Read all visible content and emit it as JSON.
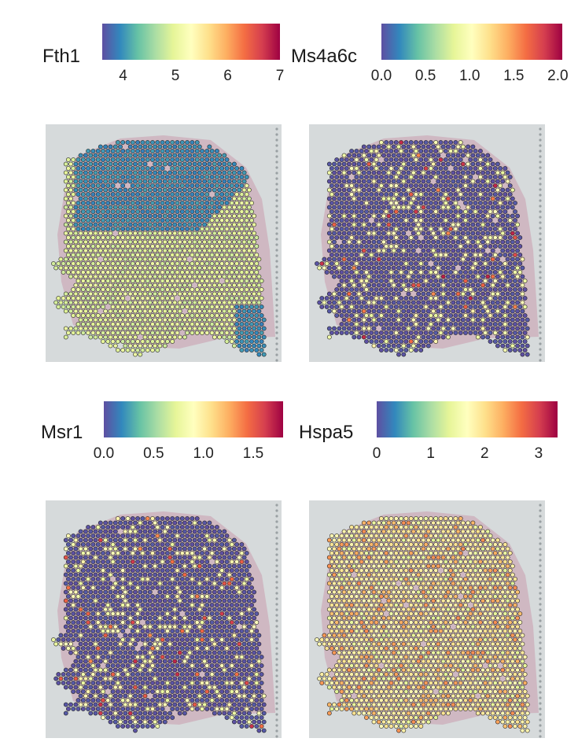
{
  "figure": {
    "colormap": [
      "#5e4fa2",
      "#3288bd",
      "#66c2a5",
      "#abdda4",
      "#e6f598",
      "#ffffbf",
      "#fee08b",
      "#fdae61",
      "#f46d43",
      "#d53e4f",
      "#9e0142"
    ],
    "background_color": "#d6dadb",
    "spot_edge_color": "#222222"
  },
  "chart_data": [
    {
      "type": "scatter",
      "title": "Fth1",
      "legend_title": "Fth1",
      "color_range": [
        3.6,
        7.0
      ],
      "ticks": [
        "4",
        "5",
        "6",
        "7"
      ],
      "tick_values": [
        4,
        5,
        6,
        7
      ],
      "spot_value_mode": "high",
      "baseline_value": 4.9,
      "hotspot_value": 3.9
    },
    {
      "type": "scatter",
      "title": "Ms4a6c",
      "legend_title": "Ms4a6c",
      "color_range": [
        0.0,
        2.05
      ],
      "ticks": [
        "0.0",
        "0.5",
        "1.0",
        "1.5",
        "2.0"
      ],
      "tick_values": [
        0.0,
        0.5,
        1.0,
        1.5,
        2.0
      ],
      "spot_value_mode": "sparse",
      "baseline_value": 0.0,
      "hotspot_value": 1.0
    },
    {
      "type": "scatter",
      "title": "Msr1",
      "legend_title": "Msr1",
      "color_range": [
        0.0,
        1.8
      ],
      "ticks": [
        "0.0",
        "0.5",
        "1.0",
        "1.5"
      ],
      "tick_values": [
        0.0,
        0.5,
        1.0,
        1.5
      ],
      "spot_value_mode": "sparse",
      "baseline_value": 0.0,
      "hotspot_value": 0.9
    },
    {
      "type": "scatter",
      "title": "Hspa5",
      "legend_title": "Hspa5",
      "color_range": [
        0.0,
        3.35
      ],
      "ticks": [
        "0",
        "1",
        "2",
        "3"
      ],
      "tick_values": [
        0,
        1,
        2,
        3
      ],
      "spot_value_mode": "high",
      "baseline_value": 1.8,
      "hotspot_value": 1.3
    }
  ]
}
